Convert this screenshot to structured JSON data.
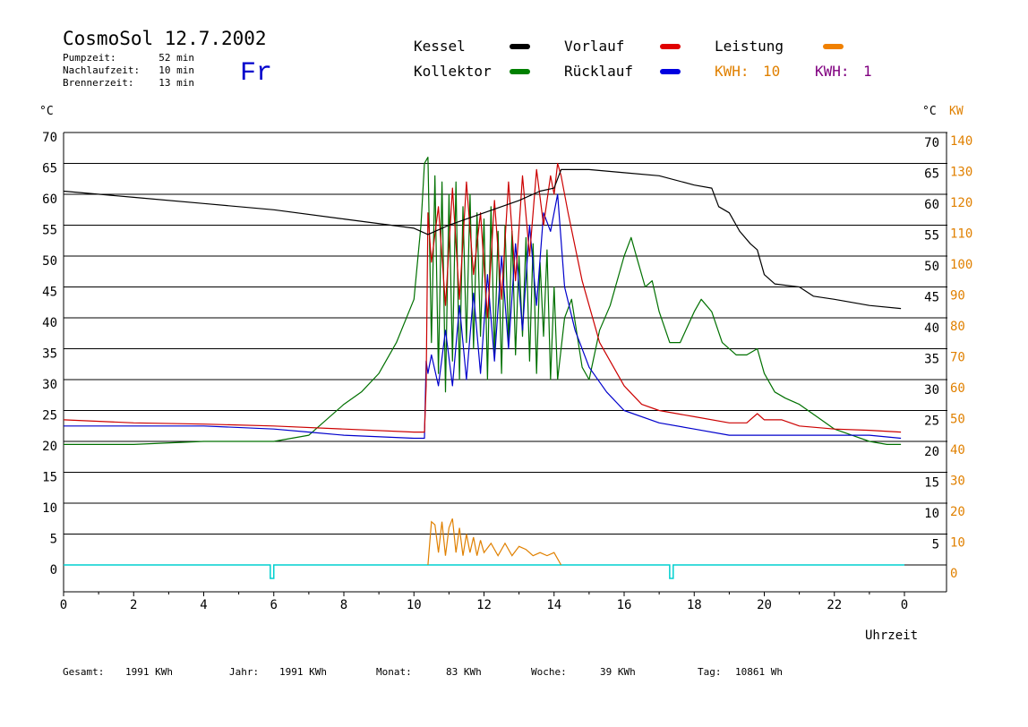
{
  "header": {
    "title": "CosmoSol 12.7.2002",
    "day": "Fr",
    "stats": [
      {
        "label": "Pumpzeit:",
        "value": "52 min"
      },
      {
        "label": "Nachlaufzeit:",
        "value": "10 min"
      },
      {
        "label": "Brennerzeit:",
        "value": "13 min"
      }
    ]
  },
  "legend": {
    "items": [
      {
        "label": "Kessel",
        "color": "#000000"
      },
      {
        "label": "Vorlauf",
        "color": "#e00000"
      },
      {
        "label": "Leistung",
        "color": "#f08000"
      },
      {
        "label": "Kollektor",
        "color": "#008000"
      },
      {
        "label": "Rücklauf",
        "color": "#0000e0"
      }
    ],
    "kwh": [
      {
        "label": "KWH:",
        "value": "10",
        "color": "#e08000"
      },
      {
        "label": "KWH:",
        "value": "1",
        "color": "#800080"
      }
    ]
  },
  "footer": [
    {
      "label": "Gesamt:",
      "value": "1991 KWh"
    },
    {
      "label": "Jahr:",
      "value": "1991 KWh"
    },
    {
      "label": "Monat:",
      "value": "83 KWh"
    },
    {
      "label": "Woche:",
      "value": "39 KWh"
    },
    {
      "label": "Tag:",
      "value": "10861 Wh"
    }
  ],
  "chart_data": {
    "type": "line",
    "xlabel": "Uhrzeit",
    "x_ticks": [
      "0",
      "2",
      "4",
      "6",
      "8",
      "10",
      "12",
      "14",
      "16",
      "18",
      "20",
      "22",
      "0"
    ],
    "y_left_unit": "°C",
    "y_right_unit": "°C",
    "y_right2_unit": "KW",
    "y_left_ticks": [
      0,
      5,
      10,
      15,
      20,
      25,
      30,
      35,
      40,
      45,
      50,
      55,
      60,
      65,
      70
    ],
    "y_right_ticks": [
      5,
      10,
      15,
      20,
      25,
      30,
      35,
      40,
      45,
      50,
      55,
      60,
      65,
      70
    ],
    "y_kw_ticks": [
      0,
      10,
      20,
      30,
      40,
      50,
      60,
      70,
      80,
      90,
      100,
      110,
      120,
      130,
      140
    ],
    "xlim": [
      0,
      24
    ],
    "ylim": [
      0,
      70
    ],
    "grid": "horizontal",
    "colors": {
      "Kessel": "#000000",
      "Vorlauf": "#cc0000",
      "Rücklauf": "#0000cc",
      "Kollektor": "#007000",
      "Leistung": "#e08000",
      "Brenner": "#00d0d0"
    },
    "series": [
      {
        "name": "Kessel",
        "x": [
          0,
          2,
          4,
          6,
          8,
          10,
          10.4,
          11,
          12,
          13,
          13.6,
          14,
          14.2,
          15,
          16,
          17,
          18,
          18.5,
          18.7,
          19,
          19.3,
          19.6,
          19.8,
          20,
          20.3,
          21,
          21.4,
          22,
          23,
          23.9
        ],
        "y": [
          60.5,
          59.5,
          58.5,
          57.5,
          56,
          54.5,
          53.5,
          55,
          57,
          59,
          60.5,
          61,
          64,
          64,
          63.5,
          63,
          61.5,
          61,
          58,
          57,
          54,
          52,
          51,
          47,
          45.5,
          45,
          43.5,
          43,
          42,
          41.5
        ]
      },
      {
        "name": "Vorlauf",
        "x": [
          0,
          2,
          4,
          6,
          8,
          10,
          10.3,
          10.35,
          10.4,
          10.5,
          10.7,
          10.9,
          11.1,
          11.3,
          11.5,
          11.7,
          11.9,
          12.1,
          12.3,
          12.5,
          12.7,
          12.9,
          13.1,
          13.3,
          13.5,
          13.7,
          13.9,
          14.0,
          14.1,
          14.2,
          14.4,
          14.8,
          15.3,
          16,
          16.5,
          17,
          18,
          19,
          19.5,
          19.8,
          20,
          20.5,
          21,
          22,
          23,
          23.9
        ],
        "y": [
          23.5,
          23,
          22.8,
          22.5,
          22,
          21.5,
          21.5,
          29,
          57,
          49,
          58,
          42,
          61,
          43,
          62,
          47,
          57,
          40,
          59,
          43,
          62,
          46,
          63,
          50,
          64,
          55,
          63,
          60,
          65,
          63,
          57,
          46,
          36,
          29,
          26,
          25,
          24,
          23,
          23,
          24.5,
          23.5,
          23.5,
          22.5,
          22,
          21.8,
          21.5
        ]
      },
      {
        "name": "Rücklauf",
        "x": [
          0,
          2,
          4,
          6,
          7,
          8,
          10,
          10.3,
          10.35,
          10.4,
          10.5,
          10.7,
          10.9,
          11.1,
          11.3,
          11.5,
          11.7,
          11.9,
          12.1,
          12.3,
          12.5,
          12.7,
          12.9,
          13.1,
          13.3,
          13.5,
          13.7,
          13.9,
          14.1,
          14.3,
          14.6,
          15,
          15.5,
          16,
          17,
          18,
          19,
          19.5,
          20,
          21,
          22,
          23,
          23.9
        ],
        "y": [
          22.5,
          22.5,
          22.5,
          22,
          21.5,
          21,
          20.5,
          20.5,
          33,
          31,
          34,
          29,
          38,
          29,
          42,
          30,
          44,
          31,
          47,
          33,
          50,
          35,
          52,
          38,
          55,
          42,
          57,
          54,
          60,
          45,
          38,
          32,
          28,
          25,
          23,
          22,
          21,
          21,
          21,
          21,
          21,
          21,
          20.5
        ]
      },
      {
        "name": "Kollektor",
        "x": [
          0,
          2,
          4,
          5,
          6,
          7,
          8,
          8.5,
          9,
          9.5,
          10,
          10.2,
          10.3,
          10.4,
          10.5,
          10.6,
          10.7,
          10.8,
          10.9,
          11.0,
          11.1,
          11.2,
          11.3,
          11.4,
          11.5,
          11.6,
          11.7,
          11.8,
          11.9,
          12.0,
          12.1,
          12.2,
          12.3,
          12.4,
          12.5,
          12.6,
          12.7,
          12.8,
          12.9,
          13.0,
          13.1,
          13.2,
          13.3,
          13.4,
          13.5,
          13.6,
          13.7,
          13.8,
          13.9,
          14.0,
          14.1,
          14.3,
          14.5,
          14.8,
          15.0,
          15.3,
          15.6,
          16,
          16.2,
          16.4,
          16.6,
          16.8,
          17,
          17.3,
          17.6,
          18,
          18.2,
          18.5,
          18.8,
          19.2,
          19.5,
          19.8,
          20,
          20.3,
          20.6,
          21,
          21.5,
          22,
          22.5,
          23,
          23.5,
          23.9
        ],
        "y": [
          19.5,
          19.5,
          20,
          20,
          20,
          21,
          26,
          28,
          31,
          36,
          43,
          55,
          65,
          66,
          36,
          63,
          31,
          62,
          28,
          60,
          33,
          62,
          30,
          58,
          36,
          60,
          35,
          57,
          37,
          56,
          30,
          58,
          34,
          54,
          31,
          55,
          36,
          54,
          34,
          50,
          37,
          53,
          33,
          52,
          31,
          49,
          37,
          51,
          30,
          45,
          30,
          40,
          43,
          32,
          30,
          38,
          42,
          50,
          53,
          49,
          45,
          46,
          41,
          36,
          36,
          41,
          43,
          41,
          36,
          34,
          34,
          35,
          31,
          28,
          27,
          26,
          24,
          22,
          21,
          20,
          19.5,
          19.5
        ]
      }
    ],
    "leistung": {
      "x": [
        10.4,
        10.5,
        10.6,
        10.7,
        10.8,
        10.9,
        11.0,
        11.1,
        11.2,
        11.3,
        11.4,
        11.5,
        11.6,
        11.7,
        11.8,
        11.9,
        12.0,
        12.2,
        12.4,
        12.6,
        12.8,
        13.0,
        13.2,
        13.4,
        13.6,
        13.8,
        14.0,
        14.2
      ],
      "y": [
        0,
        14,
        13,
        4,
        14,
        3,
        12,
        15,
        4,
        12,
        3,
        10,
        4,
        9,
        3,
        8,
        4,
        7,
        3,
        7,
        3,
        6,
        5,
        3,
        4,
        3,
        4,
        0
      ]
    },
    "brenner_pulses": [
      [
        5.9,
        6.0
      ],
      [
        17.3,
        17.4
      ]
    ]
  }
}
